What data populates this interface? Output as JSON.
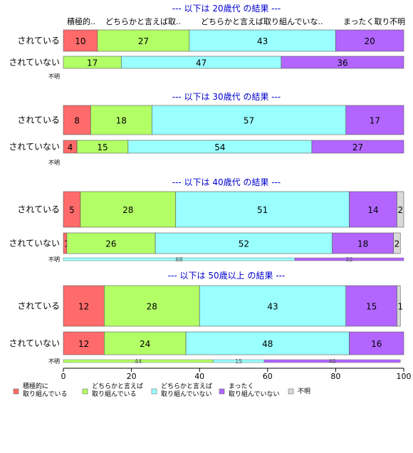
{
  "chart_data": {
    "type": "bar",
    "orientation": "horizontal",
    "stacked": "percent",
    "categories": [
      "積極的に\n取り組んでいる",
      "どちらかと言えば\n取り組んでいる",
      "どちらかと言えば\n取り組んでいない",
      "まったく\n取り組んでいない",
      "不明"
    ],
    "category_headers": [
      "積極的..",
      "どちらかと言えば取..",
      "どちらかと言えば取り組んでいな..",
      "まったく取り..",
      "不明"
    ],
    "colors": [
      "#ff6b6b",
      "#b3ff66",
      "#99ffff",
      "#b266ff",
      "#d9d9d9"
    ],
    "xlim": [
      0,
      100
    ],
    "xticks": [
      0,
      20,
      40,
      60,
      80,
      100
    ],
    "grid": false,
    "legend_position": "bottom",
    "panels": [
      {
        "title": "--- 以下は 20歳代 の結果 ---",
        "rows": [
          {
            "label": "されている",
            "values": [
              10,
              27,
              43,
              20,
              0
            ]
          },
          {
            "label": "されていない",
            "values": [
              0,
              17,
              47,
              36,
              0
            ]
          }
        ],
        "nodata": {
          "label": "不明",
          "values": []
        }
      },
      {
        "title": "--- 以下は 30歳代 の結果 ---",
        "rows": [
          {
            "label": "されている",
            "values": [
              8,
              18,
              57,
              17,
              0
            ]
          },
          {
            "label": "されていない",
            "values": [
              4,
              15,
              54,
              27,
              0
            ]
          }
        ],
        "nodata": {
          "label": "不明",
          "values": []
        }
      },
      {
        "title": "--- 以下は 40歳代 の結果 ---",
        "rows": [
          {
            "label": "されている",
            "values": [
              5,
              28,
              51,
              14,
              2
            ]
          },
          {
            "label": "されていない",
            "values": [
              1,
              26,
              52,
              18,
              2
            ]
          }
        ],
        "nodata": {
          "label": "不明",
          "values": [
            0,
            0,
            68,
            32,
            0
          ]
        }
      },
      {
        "title": "--- 以下は 50歳以上 の結果 ---",
        "rows": [
          {
            "label": "されている",
            "values": [
              12,
              28,
              43,
              15,
              1
            ]
          },
          {
            "label": "されていない",
            "values": [
              12,
              24,
              48,
              16,
              0
            ]
          }
        ],
        "nodata": {
          "label": "不明",
          "values": [
            0,
            44,
            15,
            40,
            0
          ]
        }
      }
    ]
  },
  "style": {
    "title_color": "#0000cc",
    "bar_stroke": "#555555",
    "axis_color": "#000000"
  }
}
